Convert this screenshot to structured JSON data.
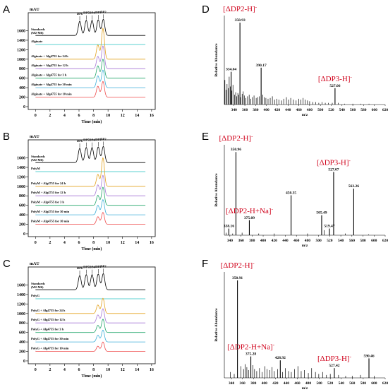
{
  "panel_labels": [
    "A",
    "B",
    "C",
    "D",
    "E",
    "F"
  ],
  "hplc_common": {
    "y_unit": "mAU",
    "x_label": "Time (min)",
    "x_ticks": [
      0,
      2,
      4,
      6,
      8,
      10,
      12,
      14,
      16
    ],
    "y_ticks": [
      0,
      200,
      400,
      600,
      800,
      1000,
      1200,
      1400,
      1600
    ],
    "x_range": [
      -1,
      16.5
    ],
    "y_range": [
      -60,
      1980
    ],
    "dp_labels": [
      "DP6",
      "DP5",
      "DP4",
      "DP3",
      "DP2"
    ],
    "dp_positions": [
      6.1,
      7.0,
      7.8,
      8.65,
      9.35
    ],
    "standards_label": "Standards\n(M2-M6)",
    "trace_colors": [
      "#ef4a4a",
      "#3aaed8",
      "#22a56b",
      "#a678d6",
      "#e3a11c"
    ]
  },
  "chart_data": [
    {
      "type": "line",
      "panel": "A",
      "substrate_label": "Alginate",
      "x_range": [
        -1,
        16.5
      ],
      "y_range": [
        -60,
        1980
      ],
      "series": [
        {
          "name": "Standards (M2-M6)",
          "baseline": 1500,
          "peaks": [
            [
              6.1,
              300
            ],
            [
              7.0,
              320
            ],
            [
              7.8,
              320
            ],
            [
              8.65,
              330
            ],
            [
              9.35,
              340
            ]
          ]
        },
        {
          "name": "Alginate",
          "baseline": 1310,
          "peaks": []
        },
        {
          "name": "Alginate + Alg4755 for 24 h",
          "baseline": 1000,
          "peaks": [
            [
              8.6,
              300
            ],
            [
              9.3,
              650
            ]
          ]
        },
        {
          "name": "Alginate + Alg4755 for 12 h",
          "baseline": 800,
          "peaks": [
            [
              8.6,
              260
            ],
            [
              9.3,
              480
            ]
          ]
        },
        {
          "name": "Alginate + Alg4755 for 3 h",
          "baseline": 600,
          "peaks": [
            [
              8.6,
              260
            ],
            [
              9.3,
              400
            ]
          ]
        },
        {
          "name": "Alginate + Alg4755 for 30 min",
          "baseline": 400,
          "peaks": [
            [
              8.6,
              250
            ],
            [
              9.3,
              370
            ]
          ]
        },
        {
          "name": "Alginate + Alg4755 for 10 min",
          "baseline": 200,
          "peaks": [
            [
              8.6,
              230
            ],
            [
              9.3,
              330
            ]
          ]
        }
      ]
    },
    {
      "type": "line",
      "panel": "B",
      "substrate_label": "PolyM",
      "x_range": [
        -1,
        16.5
      ],
      "y_range": [
        -60,
        1980
      ],
      "series": [
        {
          "name": "Standards (M2-M6)",
          "baseline": 1500,
          "peaks": [
            [
              6.1,
              300
            ],
            [
              7.0,
              320
            ],
            [
              7.8,
              320
            ],
            [
              8.65,
              330
            ],
            [
              9.35,
              340
            ]
          ]
        },
        {
          "name": "PolyM",
          "baseline": 1310,
          "peaks": []
        },
        {
          "name": "PolyM + Alg4755 for 24 h",
          "baseline": 1000,
          "peaks": [
            [
              8.6,
              250
            ],
            [
              9.3,
              600
            ]
          ]
        },
        {
          "name": "PolyM + Alg4755 for 12 h",
          "baseline": 800,
          "peaks": [
            [
              8.6,
              230
            ],
            [
              9.3,
              430
            ]
          ]
        },
        {
          "name": "PolyM + Alg4755 for 3 h",
          "baseline": 600,
          "peaks": [
            [
              8.6,
              210
            ],
            [
              9.3,
              380
            ]
          ]
        },
        {
          "name": "PolyM + Alg4755 for 30 min",
          "baseline": 400,
          "peaks": [
            [
              8.6,
              200
            ],
            [
              9.3,
              320
            ]
          ]
        },
        {
          "name": "PolyM + Alg4755 for 10 min",
          "baseline": 200,
          "peaks": [
            [
              8.6,
              160
            ],
            [
              9.3,
              250
            ]
          ]
        }
      ]
    },
    {
      "type": "line",
      "panel": "C",
      "substrate_label": "PolyG",
      "x_range": [
        -1,
        16.5
      ],
      "y_range": [
        -60,
        1980
      ],
      "series": [
        {
          "name": "Standards (M2-M6)",
          "baseline": 1500,
          "peaks": [
            [
              6.1,
              300
            ],
            [
              7.0,
              320
            ],
            [
              7.8,
              320
            ],
            [
              8.65,
              330
            ],
            [
              9.35,
              340
            ]
          ]
        },
        {
          "name": "PolyG",
          "baseline": 1310,
          "peaks": []
        },
        {
          "name": "PolyG + Alg4755 for 24 h",
          "baseline": 1000,
          "peaks": [
            [
              8.6,
              180
            ],
            [
              9.3,
              320
            ]
          ]
        },
        {
          "name": "PolyG + Alg4755 for 12 h",
          "baseline": 800,
          "peaks": [
            [
              8.6,
              170
            ],
            [
              9.3,
              300
            ]
          ]
        },
        {
          "name": "PolyG + Alg4755 for 3 h",
          "baseline": 600,
          "peaks": [
            [
              8.6,
              150
            ],
            [
              9.3,
              280
            ]
          ]
        },
        {
          "name": "PolyG + Alg4755 for 30 min",
          "baseline": 400,
          "peaks": [
            [
              8.6,
              140
            ],
            [
              9.3,
              250
            ]
          ]
        },
        {
          "name": "PolyG + Alg4755 for 10 min",
          "baseline": 200,
          "peaks": [
            [
              8.6,
              110
            ],
            [
              9.3,
              200
            ]
          ]
        }
      ]
    },
    {
      "type": "bar",
      "panel": "D",
      "x_label": "m/z",
      "y_label": "Relative Abundance",
      "x_range": [
        322,
        620
      ],
      "x_ticks": [
        340,
        360,
        380,
        400,
        420,
        440,
        460,
        480,
        500,
        520,
        540,
        560,
        580,
        600,
        620
      ],
      "y_range": [
        0,
        100
      ],
      "peaks": [
        {
          "mz": 334.64,
          "ab": 40,
          "label": "334.64"
        },
        {
          "mz": 350.93,
          "ab": 100,
          "label": "350.93"
        },
        {
          "mz": 390.17,
          "ab": 45,
          "label": "390.17"
        },
        {
          "mz": 527.06,
          "ab": 20,
          "label": "527.06"
        }
      ],
      "noise": [
        [
          323,
          30
        ],
        [
          325,
          18
        ],
        [
          327,
          25
        ],
        [
          329,
          20
        ],
        [
          331,
          34
        ],
        [
          333,
          22
        ],
        [
          336,
          17
        ],
        [
          338,
          24
        ],
        [
          341,
          12
        ],
        [
          343,
          15
        ],
        [
          345,
          10
        ],
        [
          347,
          14
        ],
        [
          349,
          12
        ],
        [
          352,
          9
        ],
        [
          355,
          13
        ],
        [
          357,
          16
        ],
        [
          359,
          11
        ],
        [
          362,
          8
        ],
        [
          365,
          10
        ],
        [
          368,
          12
        ],
        [
          371,
          7
        ],
        [
          374,
          9
        ],
        [
          377,
          11
        ],
        [
          381,
          8
        ],
        [
          384,
          9
        ],
        [
          387,
          10
        ],
        [
          393,
          12
        ],
        [
          396,
          9
        ],
        [
          399,
          8
        ],
        [
          403,
          7
        ],
        [
          407,
          8
        ],
        [
          411,
          10
        ],
        [
          415,
          6
        ],
        [
          419,
          7
        ],
        [
          423,
          6
        ],
        [
          428,
          5
        ],
        [
          432,
          7
        ],
        [
          437,
          9
        ],
        [
          441,
          6
        ],
        [
          445,
          8
        ],
        [
          450,
          6
        ],
        [
          455,
          5
        ],
        [
          460,
          7
        ],
        [
          464,
          6
        ],
        [
          468,
          8
        ],
        [
          472,
          6
        ],
        [
          476,
          5
        ],
        [
          480,
          4
        ],
        [
          486,
          3
        ],
        [
          491,
          3
        ],
        [
          497,
          2
        ],
        [
          503,
          3
        ],
        [
          509,
          2
        ],
        [
          515,
          2
        ],
        [
          522,
          2
        ],
        [
          533,
          2
        ],
        [
          545,
          1
        ],
        [
          560,
          1
        ],
        [
          575,
          1
        ],
        [
          590,
          1
        ]
      ],
      "annotations": [
        {
          "text": "[ΔDP2-H]",
          "sup": "-",
          "near_mz": 350.93
        },
        {
          "text": "[ΔDP3-H]",
          "sup": "-",
          "near_mz": 527.06
        }
      ]
    },
    {
      "type": "bar",
      "panel": "E",
      "x_label": "m/z",
      "y_label": "Relative Abundance",
      "x_range": [
        330,
        620
      ],
      "x_ticks": [
        340,
        360,
        380,
        400,
        420,
        440,
        460,
        480,
        500,
        520,
        540,
        560,
        580,
        600,
        620
      ],
      "y_range": [
        0,
        100
      ],
      "peaks": [
        {
          "mz": 338.16,
          "ab": 8,
          "label": "338.16"
        },
        {
          "mz": 350.96,
          "ab": 100,
          "label": "350.96"
        },
        {
          "mz": 375.09,
          "ab": 18,
          "label": "375.09"
        },
        {
          "mz": 450.35,
          "ab": 48,
          "label": "450.35"
        },
        {
          "mz": 505.49,
          "ab": 24,
          "label": "505.49"
        },
        {
          "mz": 519.47,
          "ab": 8,
          "label": "519.47"
        },
        {
          "mz": 527.07,
          "ab": 76,
          "label": "527.07"
        },
        {
          "mz": 563.26,
          "ab": 56,
          "label": "563.26"
        }
      ],
      "noise": [
        [
          333,
          3
        ],
        [
          345,
          2
        ],
        [
          362,
          3
        ],
        [
          392,
          2
        ],
        [
          420,
          2
        ],
        [
          480,
          2
        ],
        [
          510,
          6
        ],
        [
          548,
          2
        ],
        [
          590,
          1
        ]
      ],
      "annotations": [
        {
          "text": "[ΔDP2-H]",
          "sup": "-",
          "near_mz": 350.96
        },
        {
          "text": "[ΔDP2-H+Na]",
          "sup": "-",
          "near_mz": 375.09
        },
        {
          "text": "[ΔDP3-H]",
          "sup": "-",
          "near_mz": 527.07
        }
      ]
    },
    {
      "type": "bar",
      "panel": "F",
      "x_label": "m/z",
      "y_label": "Relative Abundance",
      "x_range": [
        327,
        620
      ],
      "x_ticks": [
        340,
        360,
        380,
        400,
        420,
        440,
        460,
        480,
        500,
        520,
        540,
        560,
        580,
        600,
        620
      ],
      "y_range": [
        0,
        100
      ],
      "peaks": [
        {
          "mz": 350.91,
          "ab": 100,
          "label": "350.91"
        },
        {
          "mz": 375.28,
          "ab": 22,
          "label": "375.28"
        },
        {
          "mz": 428.92,
          "ab": 18,
          "label": "428.92"
        },
        {
          "mz": 527.42,
          "ab": 10,
          "label": "527.42"
        },
        {
          "mz": 590.46,
          "ab": 20,
          "label": "590.46"
        }
      ],
      "noise": [
        [
          338,
          6
        ],
        [
          345,
          4
        ],
        [
          357,
          12
        ],
        [
          362,
          9
        ],
        [
          365,
          14
        ],
        [
          368,
          11
        ],
        [
          371,
          8
        ],
        [
          379,
          13
        ],
        [
          382,
          9
        ],
        [
          386,
          7
        ],
        [
          391,
          10
        ],
        [
          396,
          6
        ],
        [
          401,
          12
        ],
        [
          405,
          9
        ],
        [
          410,
          8
        ],
        [
          414,
          11
        ],
        [
          418,
          7
        ],
        [
          424,
          9
        ],
        [
          433,
          6
        ],
        [
          438,
          10
        ],
        [
          444,
          7
        ],
        [
          449,
          6
        ],
        [
          455,
          9
        ],
        [
          461,
          12
        ],
        [
          467,
          7
        ],
        [
          473,
          8
        ],
        [
          480,
          5
        ],
        [
          486,
          10
        ],
        [
          493,
          6
        ],
        [
          499,
          4
        ],
        [
          506,
          6
        ],
        [
          513,
          3
        ],
        [
          520,
          4
        ],
        [
          535,
          3
        ],
        [
          548,
          2
        ],
        [
          560,
          2
        ],
        [
          575,
          3
        ],
        [
          600,
          2
        ]
      ],
      "annotations": [
        {
          "text": "[ΔDP2-H]",
          "sup": "-",
          "near_mz": 350.91
        },
        {
          "text": "[ΔDP2-H+Na]",
          "sup": "-",
          "near_mz": 375.28
        },
        {
          "text": "[ΔDP3-H]",
          "sup": "-",
          "near_mz": 527.42
        }
      ]
    }
  ]
}
